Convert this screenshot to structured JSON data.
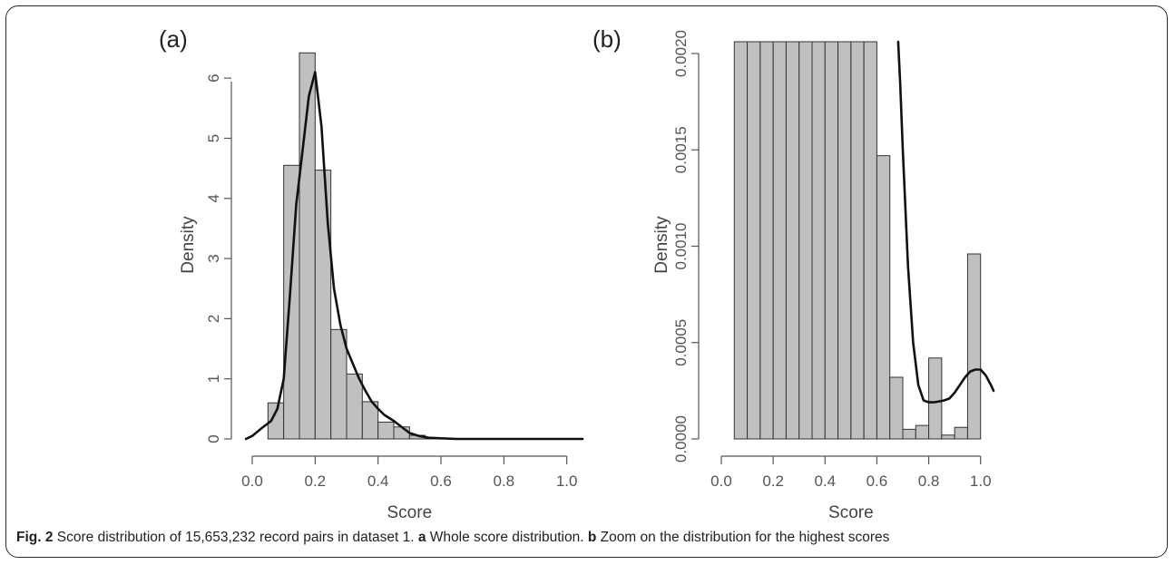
{
  "caption": {
    "fig_label": "Fig. 2",
    "text": " Score distribution of 15,653,232 record pairs in dataset 1. ",
    "a_label": "a",
    "a_text": " Whole score distribution. ",
    "b_label": "b",
    "b_text": " Zoom on the distribution for the highest scores"
  },
  "chart_data": [
    {
      "type": "bar",
      "panel_label": "(a)",
      "xlabel": "Score",
      "ylabel": "Density",
      "xlim": [
        0.0,
        1.05
      ],
      "ylim": [
        0,
        6.5
      ],
      "xticks": [
        "0.0",
        "0.2",
        "0.4",
        "0.6",
        "0.8",
        "1.0"
      ],
      "yticks": [
        "0",
        "1",
        "2",
        "3",
        "4",
        "5",
        "6"
      ],
      "bin_width": 0.05,
      "bins_start": [
        0.05,
        0.1,
        0.15,
        0.2,
        0.25,
        0.3,
        0.35,
        0.4,
        0.45,
        0.5,
        0.55
      ],
      "values": [
        0.6,
        4.55,
        6.42,
        4.47,
        1.82,
        1.08,
        0.62,
        0.28,
        0.2,
        0.06,
        0.02
      ],
      "density_curve": {
        "x": [
          -0.02,
          0.0,
          0.03,
          0.06,
          0.08,
          0.1,
          0.12,
          0.14,
          0.16,
          0.18,
          0.2,
          0.22,
          0.24,
          0.26,
          0.28,
          0.3,
          0.32,
          0.34,
          0.36,
          0.38,
          0.4,
          0.42,
          0.45,
          0.48,
          0.5,
          0.53,
          0.56,
          0.6,
          0.65,
          0.7,
          0.8,
          0.9,
          1.0,
          1.05
        ],
        "y": [
          0.0,
          0.05,
          0.18,
          0.3,
          0.5,
          1.0,
          2.4,
          3.9,
          4.8,
          5.7,
          6.1,
          5.2,
          3.6,
          2.5,
          1.9,
          1.5,
          1.25,
          1.0,
          0.8,
          0.62,
          0.5,
          0.4,
          0.3,
          0.18,
          0.1,
          0.05,
          0.02,
          0.01,
          0.0,
          0.0,
          0.0,
          0.0,
          0.0,
          0.0
        ]
      }
    },
    {
      "type": "bar",
      "panel_label": "(b)",
      "xlabel": "Score",
      "ylabel": "Density",
      "xlim": [
        0.0,
        1.05
      ],
      "ylim": [
        0,
        0.002
      ],
      "xticks": [
        "0.0",
        "0.2",
        "0.4",
        "0.6",
        "0.8",
        "1.0"
      ],
      "yticks": [
        "0.0000",
        "0.0005",
        "0.0010",
        "0.0015",
        "0.0020"
      ],
      "bin_width": 0.05,
      "bins_start": [
        0.05,
        0.1,
        0.15,
        0.2,
        0.25,
        0.3,
        0.35,
        0.4,
        0.45,
        0.5,
        0.55,
        0.6,
        0.65,
        0.7,
        0.75,
        0.8,
        0.85,
        0.9,
        0.95
      ],
      "values": [
        0.0021,
        0.0021,
        0.0021,
        0.0021,
        0.0021,
        0.0021,
        0.0021,
        0.0021,
        0.0021,
        0.0021,
        0.0021,
        0.00147,
        0.00032,
        5e-05,
        7e-05,
        0.00042,
        2e-05,
        6e-05,
        0.00096
      ],
      "density_curve": {
        "x": [
          0.682,
          0.69,
          0.7,
          0.72,
          0.74,
          0.76,
          0.78,
          0.8,
          0.82,
          0.84,
          0.86,
          0.88,
          0.9,
          0.92,
          0.94,
          0.96,
          0.98,
          1.0,
          1.02,
          1.04,
          1.05
        ],
        "y": [
          0.00209,
          0.00185,
          0.0015,
          0.0009,
          0.0005,
          0.00028,
          0.0002,
          0.00019,
          0.00019,
          0.000195,
          0.0002,
          0.00021,
          0.00024,
          0.00028,
          0.00032,
          0.00035,
          0.00036,
          0.00036,
          0.00033,
          0.00028,
          0.00025
        ]
      }
    }
  ]
}
